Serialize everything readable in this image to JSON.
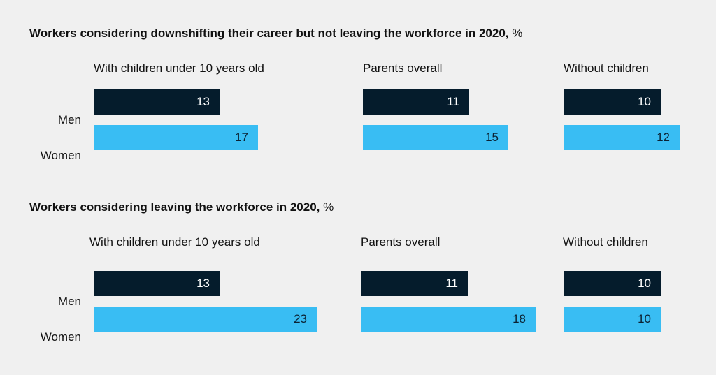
{
  "chart_data": [
    {
      "type": "bar",
      "title": "Workers considering downshifting their career but not leaving the workforce in 2020,",
      "unit": "%",
      "groups": [
        "With children under 10 years old",
        "Parents overall",
        "Without children"
      ],
      "series": [
        {
          "name": "Men",
          "values": [
            13,
            11,
            10
          ]
        },
        {
          "name": "Women",
          "values": [
            17,
            15,
            12
          ]
        }
      ],
      "colors": {
        "Men": "#051c2c",
        "Women": "#39bdf3"
      }
    },
    {
      "type": "bar",
      "title": "Workers considering leaving the workforce in 2020,",
      "unit": "%",
      "groups": [
        "With children under 10 years old",
        "Parents overall",
        "Without children"
      ],
      "series": [
        {
          "name": "Men",
          "values": [
            13,
            11,
            10
          ]
        },
        {
          "name": "Women",
          "values": [
            23,
            18,
            10
          ]
        }
      ],
      "colors": {
        "Men": "#051c2c",
        "Women": "#39bdf3"
      }
    }
  ]
}
